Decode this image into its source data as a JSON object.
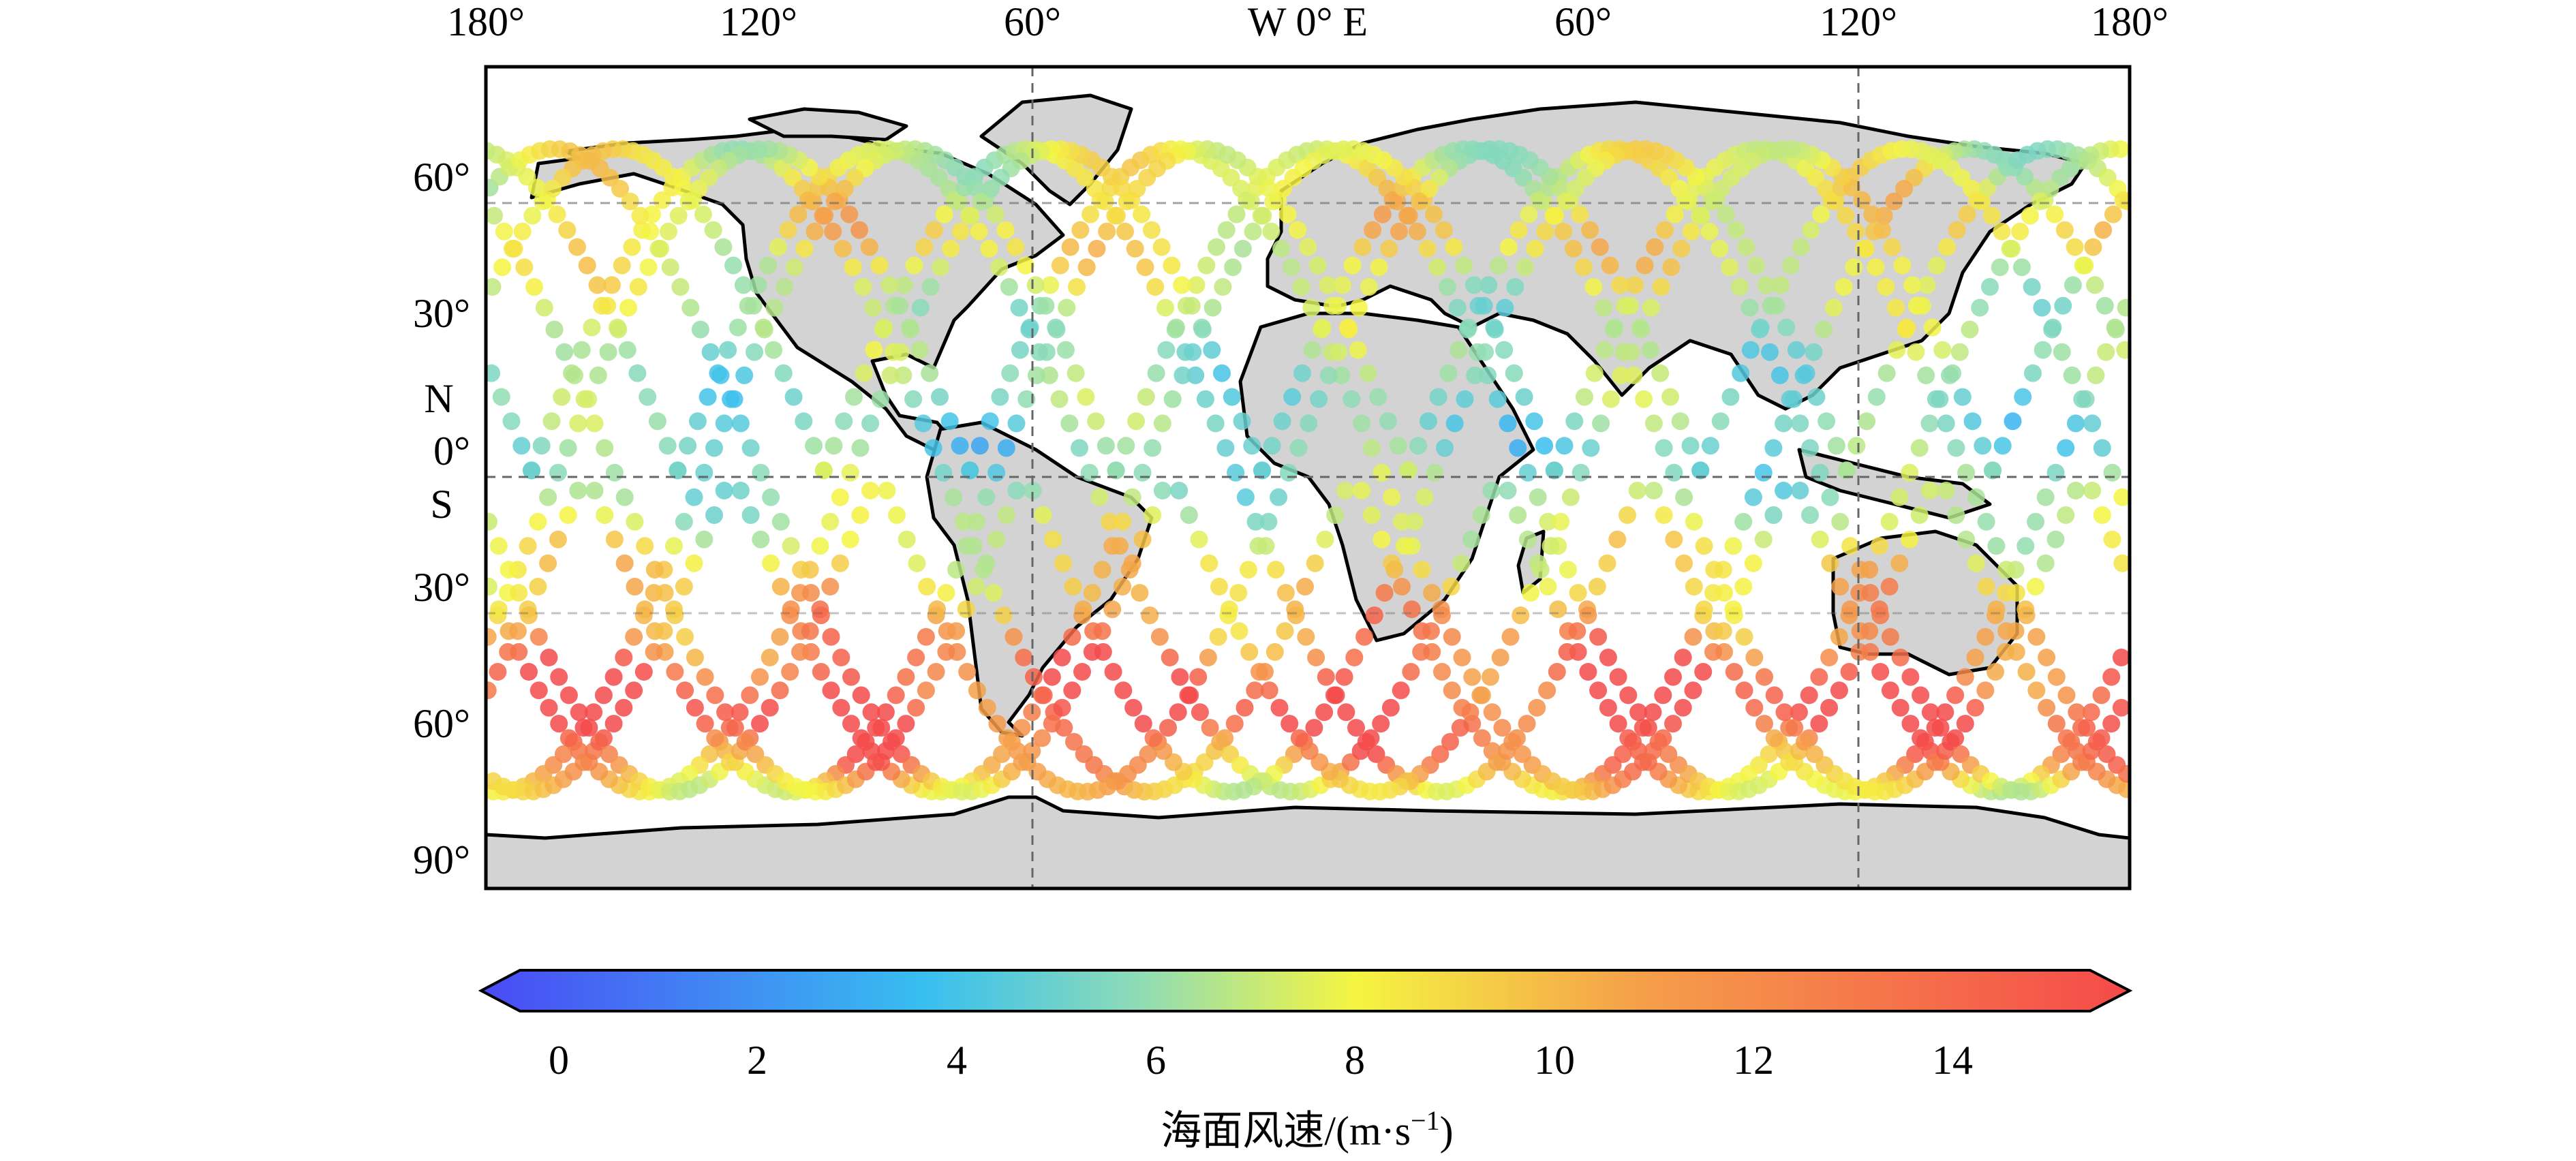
{
  "figure": {
    "lon_ticks": [
      "180°",
      "120°",
      "60°",
      "W 0° E",
      "60°",
      "120°",
      "180°"
    ],
    "lat_ticks": [
      "60°",
      "30°",
      "0°",
      "30°",
      "60°",
      "90°"
    ],
    "hemisphere_labels": {
      "north": "N",
      "south": "S"
    },
    "colorbar": {
      "ticks": [
        "0",
        "2",
        "4",
        "6",
        "8",
        "10",
        "12",
        "14"
      ],
      "title": "海面风速/(m·s",
      "title_superscript": "−1",
      "title_close": ")",
      "min": 0,
      "max": 15,
      "extend": "both"
    },
    "colors": {
      "land": "#d3d3d3",
      "ocean": "#ffffff",
      "coast": "#000000",
      "gridline": "#666666",
      "colormap": [
        "#4a4af5",
        "#38bff0",
        "#8fdcb5",
        "#f5f542",
        "#f5a04a",
        "#f54a4a"
      ]
    }
  },
  "chart_data": {
    "type": "scatter",
    "description_of_content": "",
    "x_range": [
      -180,
      180
    ],
    "y_range": [
      -90,
      80
    ],
    "xlabel": "",
    "ylabel": "",
    "grid": true,
    "value_label": "海面风速/(m·s⁻¹)",
    "value_range": [
      0,
      15
    ],
    "tracks": {
      "ground_track_inclination_deg": 70,
      "north_limit_lat": 63,
      "south_limit_lat": -70,
      "equator_crossings_lon": [
        -170,
        -138,
        -106,
        -74,
        -42,
        -10,
        22,
        54,
        86,
        118,
        150
      ]
    },
    "wind_speed_by_latitude": [
      {
        "lat": 63,
        "speed": 8
      },
      {
        "lat": 45,
        "speed": 10
      },
      {
        "lat": 30,
        "speed": 7
      },
      {
        "lat": 15,
        "speed": 6
      },
      {
        "lat": 0,
        "speed": 5
      },
      {
        "lat": -15,
        "speed": 8
      },
      {
        "lat": -30,
        "speed": 11
      },
      {
        "lat": -45,
        "speed": 14
      },
      {
        "lat": -55,
        "speed": 15
      },
      {
        "lat": -65,
        "speed": 12
      },
      {
        "lat": -70,
        "speed": 9
      }
    ]
  }
}
